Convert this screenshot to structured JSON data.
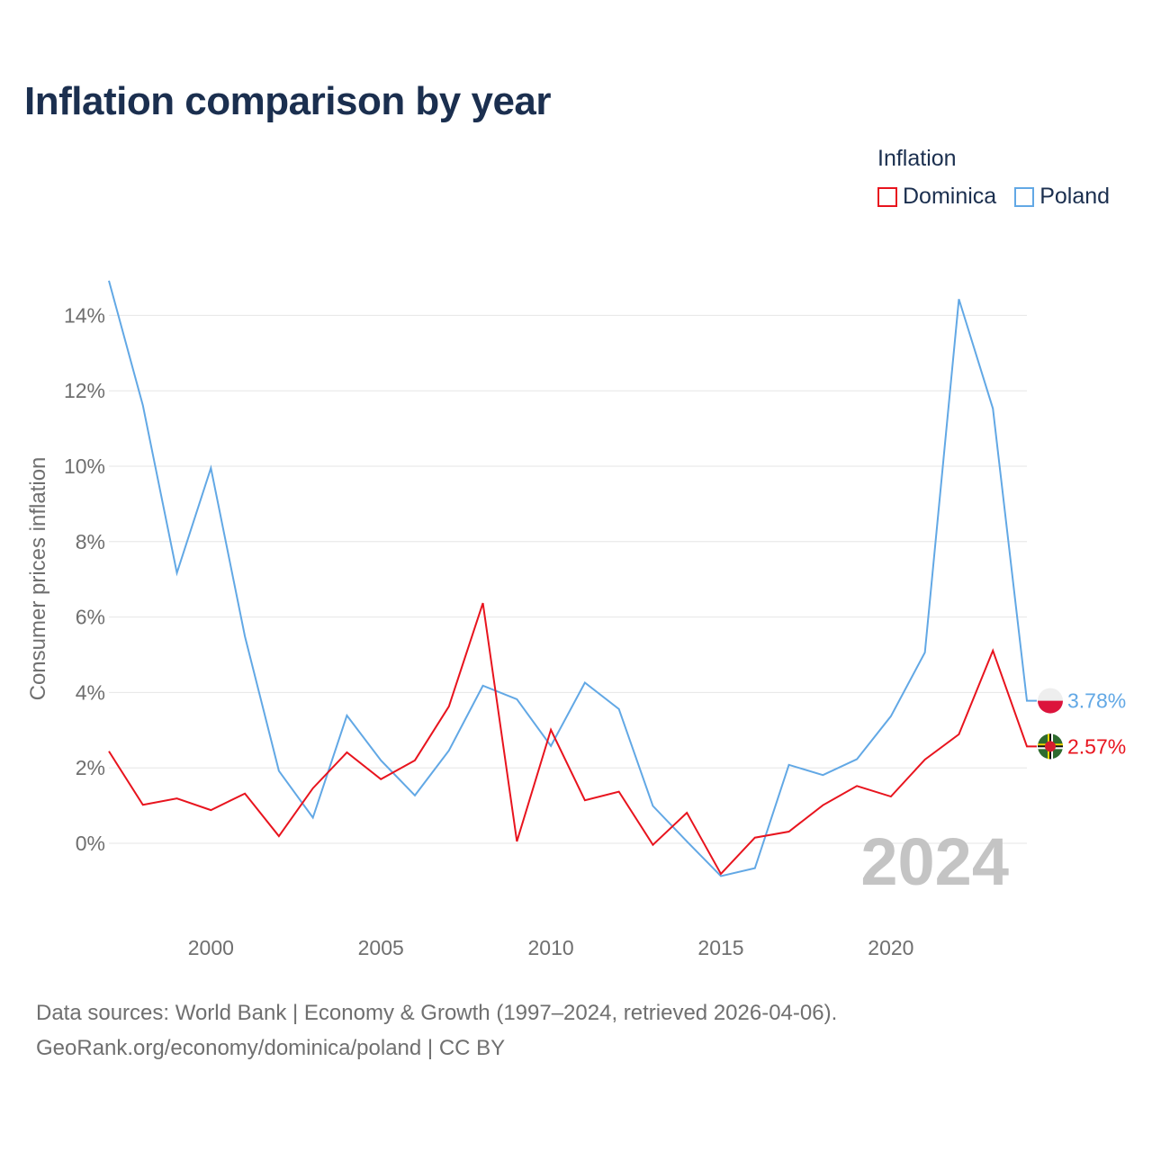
{
  "title": "Inflation comparison by year",
  "legend": {
    "title": "Inflation",
    "items": [
      {
        "label": "Dominica",
        "color": "#e8141e"
      },
      {
        "label": "Poland",
        "color": "#62a8e5"
      }
    ]
  },
  "chart_data": {
    "type": "line",
    "title": "Inflation comparison by year",
    "xlabel": "",
    "ylabel": "Consumer prices inflation",
    "xlim": [
      1997,
      2024
    ],
    "ylim": [
      -2,
      15
    ],
    "x_ticks": [
      2000,
      2005,
      2010,
      2015,
      2020
    ],
    "y_ticks": [
      0,
      2,
      4,
      6,
      8,
      10,
      12,
      14
    ],
    "y_tick_labels": [
      "0%",
      "2%",
      "4%",
      "6%",
      "8%",
      "10%",
      "12%",
      "14%"
    ],
    "grid": "horizontal",
    "year_watermark": "2024",
    "x": [
      1997,
      1998,
      1999,
      2000,
      2001,
      2002,
      2003,
      2004,
      2005,
      2006,
      2007,
      2008,
      2009,
      2010,
      2011,
      2012,
      2013,
      2014,
      2015,
      2016,
      2017,
      2018,
      2019,
      2020,
      2021,
      2022,
      2023,
      2024
    ],
    "series": [
      {
        "name": "Dominica",
        "color": "#e8141e",
        "values": [
          2.44,
          1.02,
          1.19,
          0.88,
          1.32,
          0.19,
          1.46,
          2.41,
          1.7,
          2.2,
          3.63,
          6.37,
          0.05,
          3.01,
          1.14,
          1.37,
          -0.04,
          0.81,
          -0.81,
          0.15,
          0.31,
          1.01,
          1.52,
          1.24,
          2.22,
          2.89,
          5.11,
          2.57
        ],
        "end_label": "2.57%"
      },
      {
        "name": "Poland",
        "color": "#62a8e5",
        "values": [
          14.92,
          11.61,
          7.17,
          9.95,
          5.49,
          1.92,
          0.68,
          3.39,
          2.2,
          1.27,
          2.46,
          4.18,
          3.82,
          2.58,
          4.26,
          3.56,
          0.99,
          0.05,
          -0.87,
          -0.66,
          2.08,
          1.81,
          2.23,
          3.37,
          5.06,
          14.43,
          11.53,
          3.78
        ],
        "end_label": "3.78%"
      }
    ]
  },
  "footer": {
    "line1": "Data sources: World Bank | Economy & Growth (1997–2024, retrieved 2026-04-06).",
    "line2": "GeoRank.org/economy/dominica/poland | CC BY"
  }
}
